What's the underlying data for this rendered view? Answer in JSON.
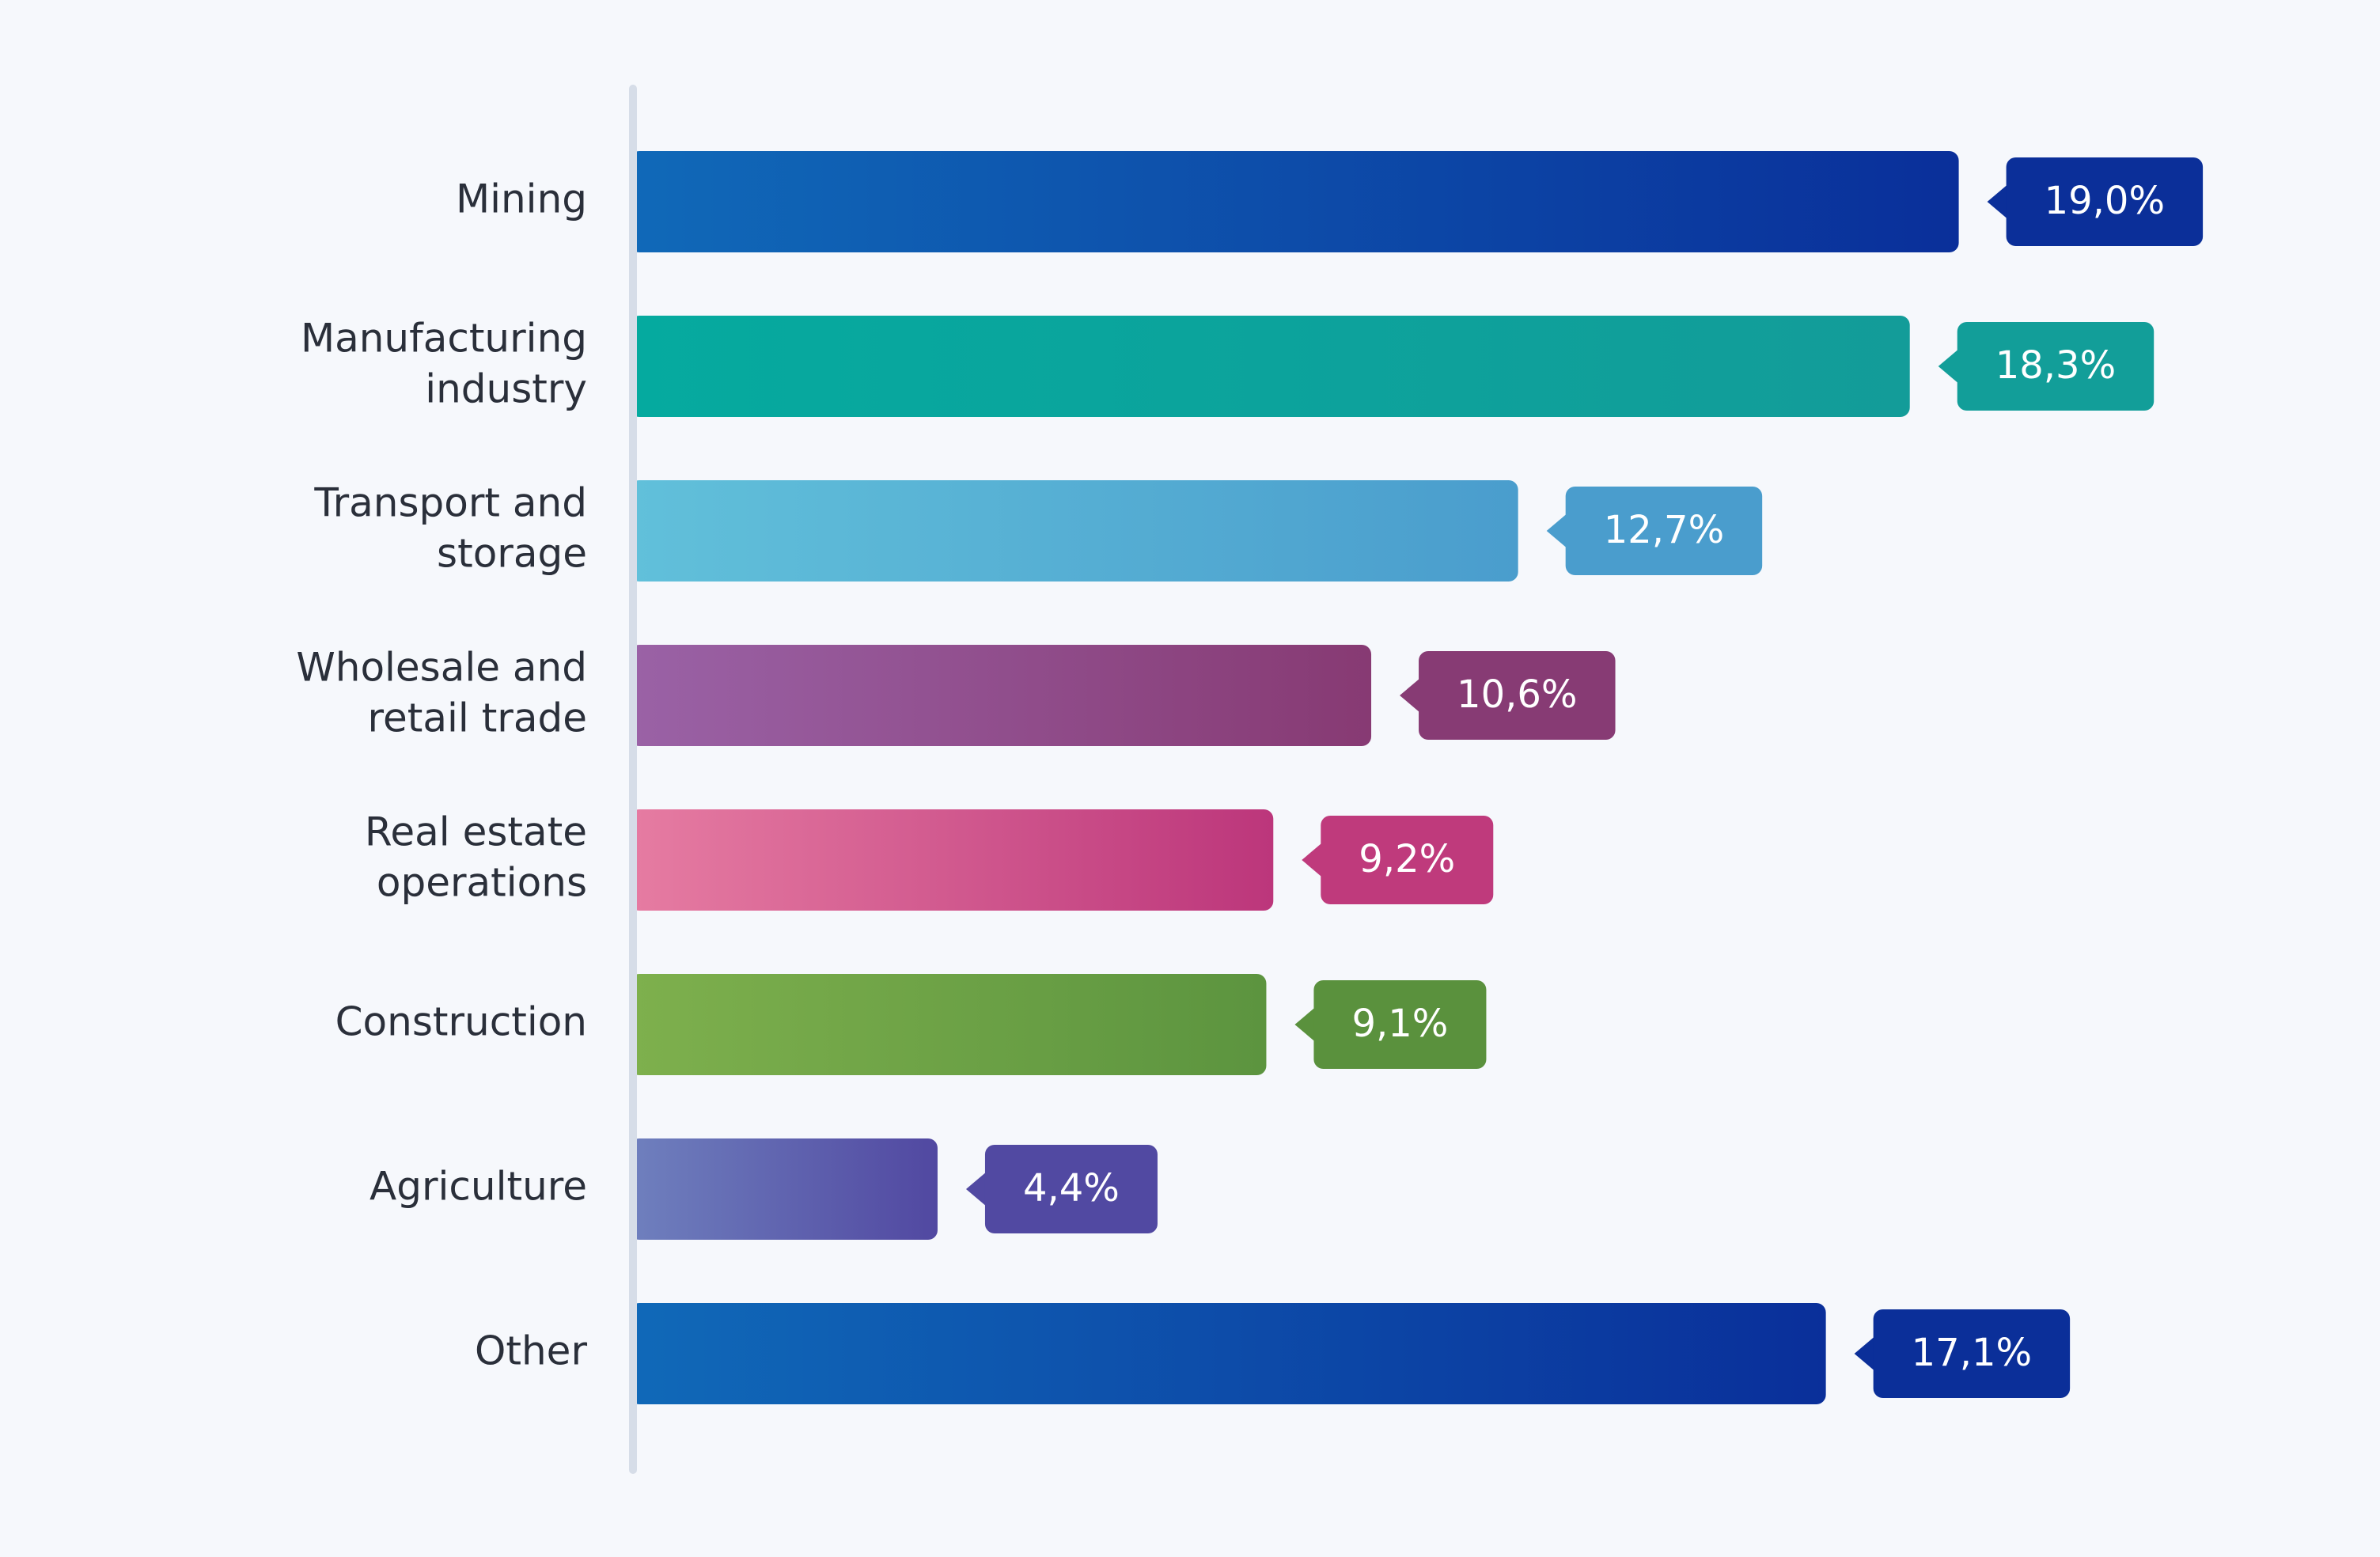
{
  "chart_data": {
    "type": "bar",
    "orientation": "horizontal",
    "xlim": [
      0,
      20
    ],
    "grid": false,
    "legend": "none",
    "unit": "%",
    "categories": [
      "Mining",
      "Manufacturing industry",
      "Transport and storage",
      "Wholesale and retail trade",
      "Real estate operations",
      "Construction",
      "Agriculture",
      "Other"
    ],
    "category_lines": [
      [
        "Mining"
      ],
      [
        "Manufacturing",
        "industry"
      ],
      [
        "Transport and",
        "storage"
      ],
      [
        "Wholesale and",
        "retail trade"
      ],
      [
        "Real estate",
        "operations"
      ],
      [
        "Construction"
      ],
      [
        "Agriculture"
      ],
      [
        "Other"
      ]
    ],
    "values": [
      19.0,
      18.3,
      12.7,
      10.6,
      9.2,
      9.1,
      4.4,
      17.1
    ],
    "value_labels": [
      "19,0%",
      "18,3%",
      "12,7%",
      "10,6%",
      "9,2%",
      "9,1%",
      "4,4%",
      "17,1%"
    ],
    "colors": [
      {
        "start": "#1069b8",
        "end": "#0a2f9a",
        "badge": "#0b2f99"
      },
      {
        "start": "#05aa9f",
        "end": "#139c99",
        "badge": "#129e99"
      },
      {
        "start": "#61c0da",
        "end": "#4a9dcd",
        "badge": "#4a9dcd"
      },
      {
        "start": "#9a62a6",
        "end": "#873a73",
        "badge": "#873b74"
      },
      {
        "start": "#e67ca2",
        "end": "#bc367b",
        "badge": "#bf3a7c"
      },
      {
        "start": "#7eb04d",
        "end": "#5c943f",
        "badge": "#5a913d"
      },
      {
        "start": "#6f80be",
        "end": "#5148a1",
        "badge": "#5149a2"
      },
      {
        "start": "#1069b8",
        "end": "#0a2f9a",
        "badge": "#0b2f99"
      }
    ],
    "axis_color": "#d6dde8"
  }
}
